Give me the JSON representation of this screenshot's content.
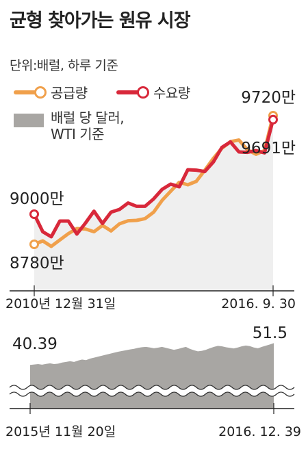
{
  "title": "균형 찾아가는 원유 시장",
  "unit_note": "단위:배럴, 하루 기준",
  "legend": {
    "supply": "공급량",
    "demand": "수요량",
    "price_line1": "배럴 당 달러,",
    "price_line2": "WTI 기준"
  },
  "colors": {
    "supply": "#f0a04b",
    "demand": "#d8283a",
    "area_light": "#efefef",
    "area_dark": "#a8a6a3"
  },
  "chart_data": [
    {
      "type": "line",
      "x_start_label": "2010년 12월 31일",
      "x_end_label": "2016. 9. 30",
      "series": [
        {
          "name": "공급량",
          "start_label": "8780만",
          "end_label": "9720만",
          "values": [
            8780,
            8805,
            8765,
            8812,
            8858,
            8895,
            8892,
            8872,
            8918,
            8878,
            8930,
            8952,
            8955,
            8968,
            9015,
            9102,
            9168,
            9233,
            9215,
            9240,
            9322,
            9408,
            9482,
            9530,
            9542,
            9470,
            9438,
            9465,
            9720
          ]
        },
        {
          "name": "수요량",
          "start_label": "9000만",
          "end_label": "9691만",
          "values": [
            9000,
            8872,
            8835,
            8950,
            8950,
            8855,
            8935,
            9022,
            8932,
            9015,
            9035,
            9082,
            9058,
            9058,
            9112,
            9182,
            9220,
            9200,
            9325,
            9322,
            9312,
            9382,
            9488,
            9528,
            9455,
            9452,
            9465,
            9448,
            9691
          ]
        }
      ]
    },
    {
      "type": "area",
      "x_start_label": "2015년 11월 20일",
      "x_end_label": "2016. 12. 39",
      "start_value_label": "40.39",
      "end_value_label": "51.5",
      "values": [
        40.39,
        40.6,
        40.8,
        40.5,
        40.9,
        41.2,
        40.8,
        41.0,
        41.6,
        41.9,
        42.3,
        41.9,
        42.6,
        43.1,
        42.8,
        43.6,
        44.1,
        44.6,
        45.1,
        45.6,
        46.1,
        46.6,
        47.1,
        47.5,
        47.9,
        48.3,
        48.6,
        49.1,
        49.4,
        49.6,
        49.3,
        48.9,
        49.2,
        49.6,
        49.1,
        48.6,
        48.1,
        48.5,
        49.1,
        49.6,
        48.6,
        47.9,
        47.3,
        47.6,
        48.1,
        48.9,
        49.6,
        50.1,
        49.9,
        49.4,
        49.1,
        48.8,
        49.3,
        49.9,
        50.3,
        50.0,
        49.3,
        48.9,
        49.6,
        50.2,
        50.8,
        51.5
      ]
    }
  ]
}
